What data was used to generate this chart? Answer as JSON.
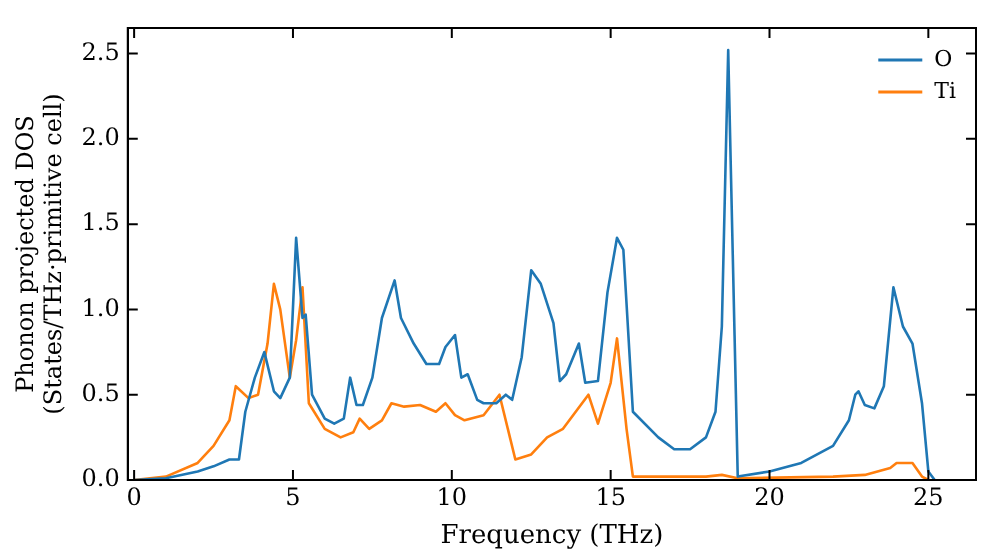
{
  "chart_data": {
    "type": "line",
    "xlabel": "Frequency (THz)",
    "ylabel": "Phonon projected DOS\n(States/THz·primitive cell)",
    "xlim": [
      -0.2,
      26.5
    ],
    "ylim": [
      0,
      2.65
    ],
    "xticks": [
      0,
      5,
      10,
      15,
      20,
      25
    ],
    "yticks": [
      {
        "value": 0,
        "label": "0.0"
      },
      0.5,
      {
        "value": 1,
        "label": "1.0"
      },
      1.5,
      {
        "value": 2,
        "label": "2.0"
      },
      2.5
    ],
    "grid": false,
    "legend": "top right",
    "marker": "none",
    "line_style": "solid",
    "series": [
      {
        "name": "O",
        "color": "#1f77b4",
        "x": [
          0,
          1,
          2,
          2.5,
          3,
          3.3,
          3.5,
          3.8,
          4.1,
          4.4,
          4.6,
          4.9,
          5.1,
          5.3,
          5.4,
          5.6,
          6,
          6.3,
          6.6,
          6.8,
          7,
          7.2,
          7.5,
          7.8,
          8.2,
          8.4,
          8.8,
          9.2,
          9.6,
          9.8,
          10.1,
          10.3,
          10.5,
          10.8,
          11,
          11.4,
          11.7,
          11.9,
          12.2,
          12.5,
          12.8,
          13.2,
          13.4,
          13.6,
          14,
          14.2,
          14.6,
          14.9,
          15.2,
          15.4,
          15.7,
          16.5,
          17,
          17.5,
          18,
          18.3,
          18.5,
          18.7,
          18.9,
          19,
          20,
          21,
          22,
          22.5,
          22.7,
          22.8,
          23,
          23.3,
          23.6,
          23.9,
          24.2,
          24.5,
          24.8,
          25,
          25.2
        ],
        "values": [
          0,
          0.01,
          0.05,
          0.08,
          0.12,
          0.12,
          0.4,
          0.6,
          0.75,
          0.52,
          0.48,
          0.6,
          1.42,
          0.95,
          0.97,
          0.5,
          0.36,
          0.33,
          0.36,
          0.6,
          0.44,
          0.44,
          0.6,
          0.95,
          1.17,
          0.95,
          0.8,
          0.68,
          0.68,
          0.78,
          0.85,
          0.6,
          0.62,
          0.47,
          0.45,
          0.45,
          0.5,
          0.47,
          0.72,
          1.23,
          1.15,
          0.92,
          0.58,
          0.62,
          0.8,
          0.57,
          0.58,
          1.1,
          1.42,
          1.35,
          0.4,
          0.25,
          0.18,
          0.18,
          0.25,
          0.4,
          0.9,
          2.52,
          0.85,
          0.02,
          0.05,
          0.1,
          0.2,
          0.35,
          0.5,
          0.52,
          0.44,
          0.42,
          0.55,
          1.13,
          0.9,
          0.8,
          0.45,
          0.05,
          0
        ]
      },
      {
        "name": "Ti",
        "color": "#ff7f0e",
        "x": [
          0,
          1,
          2,
          2.5,
          3,
          3.2,
          3.6,
          3.9,
          4.2,
          4.4,
          4.6,
          4.9,
          5.1,
          5.3,
          5.5,
          6,
          6.5,
          6.9,
          7.1,
          7.4,
          7.8,
          8.1,
          8.5,
          9,
          9.5,
          9.8,
          10.1,
          10.4,
          11,
          11.5,
          12,
          12.5,
          13,
          13.5,
          14.3,
          14.6,
          15,
          15.2,
          15.5,
          15.7,
          18,
          18.5,
          19,
          22,
          23,
          23.8,
          24,
          24.5,
          24.8,
          25
        ],
        "values": [
          0,
          0.02,
          0.1,
          0.2,
          0.35,
          0.55,
          0.48,
          0.5,
          0.8,
          1.15,
          1,
          0.6,
          0.82,
          1.13,
          0.45,
          0.3,
          0.25,
          0.28,
          0.36,
          0.3,
          0.35,
          0.45,
          0.43,
          0.44,
          0.4,
          0.45,
          0.38,
          0.35,
          0.38,
          0.5,
          0.12,
          0.15,
          0.25,
          0.3,
          0.5,
          0.33,
          0.57,
          0.83,
          0.3,
          0.02,
          0.02,
          0.03,
          0.01,
          0.02,
          0.03,
          0.07,
          0.1,
          0.1,
          0.02,
          0
        ]
      }
    ]
  }
}
